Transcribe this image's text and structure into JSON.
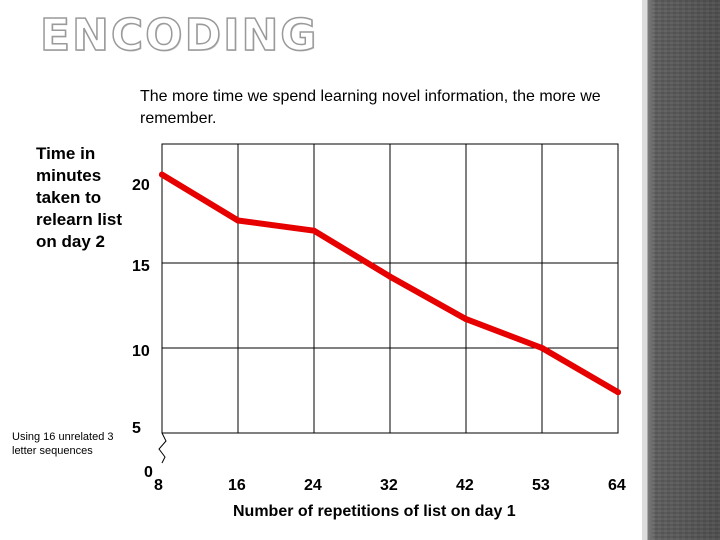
{
  "slide": {
    "title": "ENCODING"
  },
  "subtitle": "The more time we spend learning novel information, the more we remember.",
  "note": "Using 16 unrelated 3 letter sequences",
  "chart_data": {
    "type": "line",
    "title": "",
    "xlabel": "Number of repetitions of list on day 1",
    "ylabel": "Time in minutes taken to relearn list on day 2",
    "x_tick_labels": [
      "8",
      "16",
      "24",
      "32",
      "42",
      "53",
      "64"
    ],
    "y_tick_labels": [
      "0",
      "5",
      "10",
      "15",
      "20"
    ],
    "y_ticks": [
      0,
      5,
      10,
      15,
      20
    ],
    "series": [
      {
        "name": "",
        "x": [
          "8",
          "16",
          "24",
          "32",
          "42",
          "53",
          "64"
        ],
        "values": [
          20.2,
          17.5,
          16.9,
          14.2,
          11.7,
          10.0,
          7.4
        ]
      }
    ],
    "ylim": [
      0,
      22
    ],
    "y_axis_break": true,
    "grid": true,
    "line_color": "#e60000"
  }
}
